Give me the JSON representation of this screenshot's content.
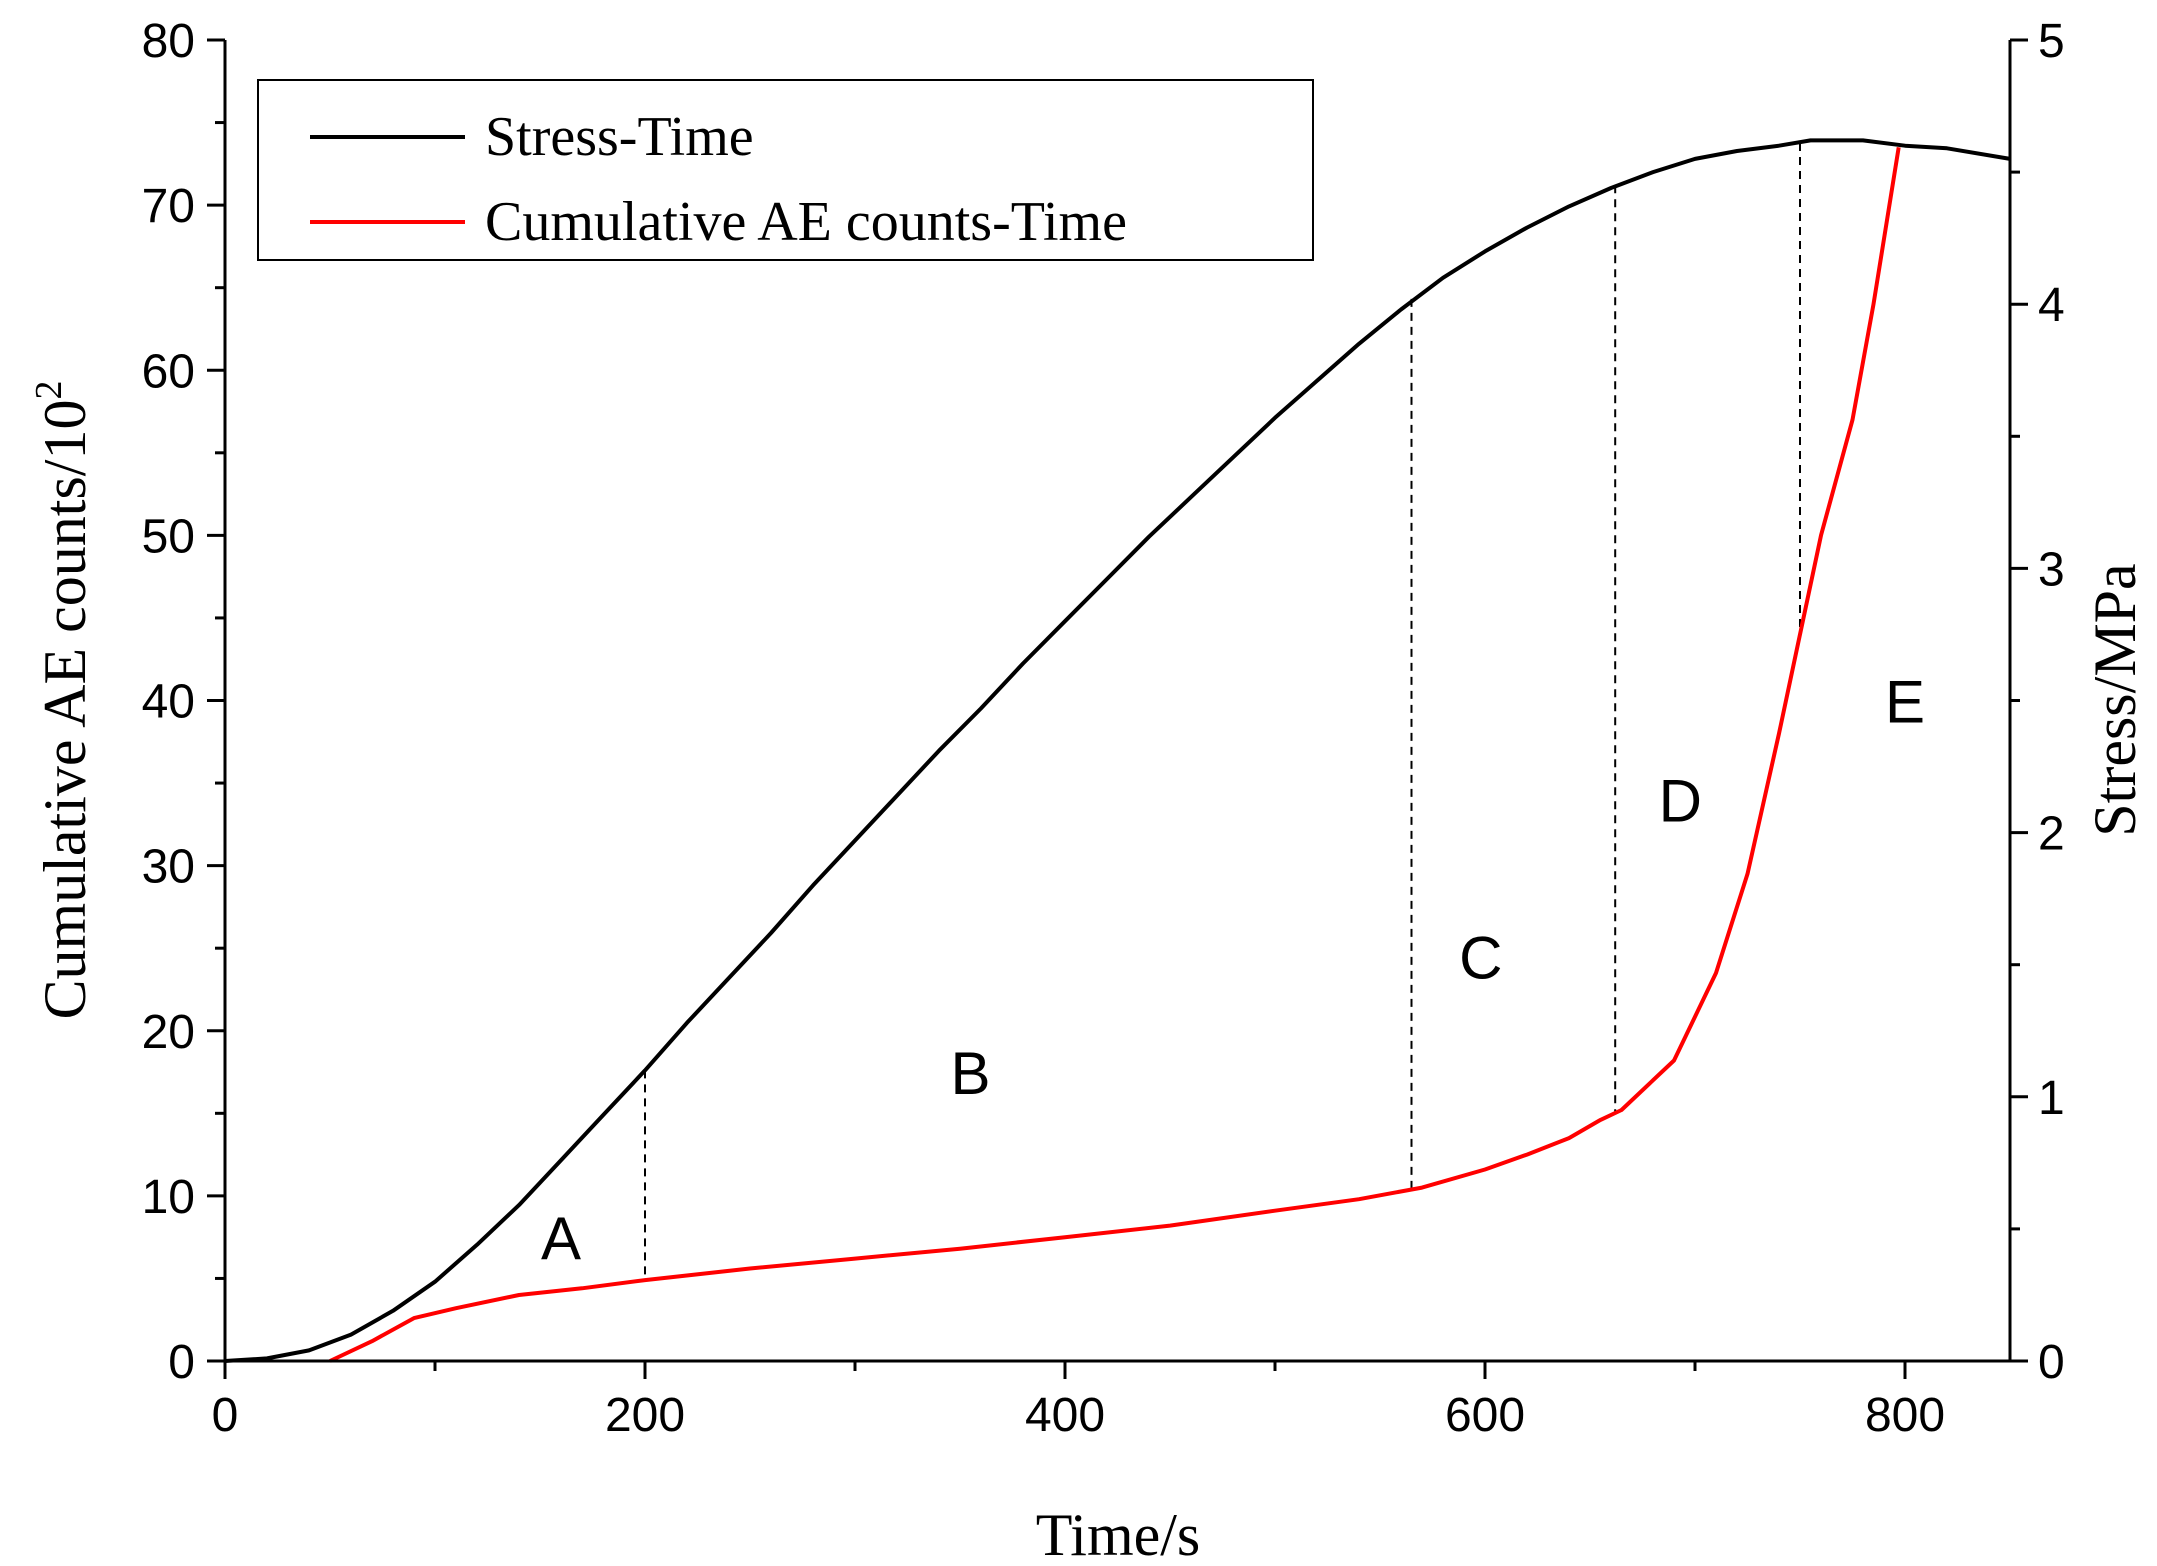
{
  "chart_data": {
    "type": "line",
    "title": "",
    "xlabel": "Time/s",
    "ylabel": "Cumulative AE counts/10",
    "ylabel_superscript": "2",
    "y2label": "Stress/MPa",
    "xlim": [
      0,
      850
    ],
    "ylim": [
      0,
      80
    ],
    "y2lim": [
      0,
      5
    ],
    "x_ticks": [
      0,
      200,
      400,
      600,
      800
    ],
    "x_tick_labels": [
      "0",
      "200",
      "400",
      "600",
      "800"
    ],
    "y_ticks": [
      0,
      10,
      20,
      30,
      40,
      50,
      60,
      70,
      80
    ],
    "y_tick_labels": [
      "0",
      "10",
      "20",
      "30",
      "40",
      "50",
      "60",
      "70",
      "80"
    ],
    "y2_ticks": [
      0,
      1,
      2,
      3,
      4,
      5
    ],
    "y2_tick_labels": [
      "0",
      "1",
      "2",
      "3",
      "4",
      "5"
    ],
    "legend_position": "top-left",
    "series": [
      {
        "name": "Stress-Time",
        "axis": "right",
        "color": "#000000",
        "x": [
          0,
          20,
          40,
          60,
          80,
          100,
          120,
          140,
          160,
          180,
          200,
          220,
          240,
          260,
          280,
          300,
          320,
          340,
          360,
          380,
          400,
          420,
          440,
          460,
          480,
          500,
          520,
          540,
          560,
          580,
          600,
          620,
          640,
          660,
          680,
          700,
          720,
          740,
          755,
          780,
          800,
          820,
          850
        ],
        "values": [
          0.0,
          0.01,
          0.04,
          0.1,
          0.19,
          0.3,
          0.44,
          0.59,
          0.76,
          0.93,
          1.1,
          1.28,
          1.45,
          1.62,
          1.8,
          1.97,
          2.14,
          2.31,
          2.47,
          2.64,
          2.8,
          2.96,
          3.12,
          3.27,
          3.42,
          3.57,
          3.71,
          3.85,
          3.98,
          4.1,
          4.2,
          4.29,
          4.37,
          4.44,
          4.5,
          4.55,
          4.58,
          4.6,
          4.62,
          4.62,
          4.6,
          4.59,
          4.55
        ]
      },
      {
        "name": "Cumulative AE counts-Time",
        "axis": "left",
        "color": "#ff0000",
        "x": [
          50,
          70,
          90,
          110,
          140,
          170,
          200,
          250,
          300,
          350,
          400,
          450,
          500,
          540,
          570,
          600,
          620,
          640,
          655,
          665,
          690,
          710,
          725,
          740,
          750,
          760,
          775,
          785,
          797
        ],
        "values": [
          0,
          1.2,
          2.6,
          3.2,
          4.0,
          4.4,
          4.9,
          5.6,
          6.2,
          6.8,
          7.5,
          8.2,
          9.1,
          9.8,
          10.5,
          11.6,
          12.5,
          13.5,
          14.6,
          15.2,
          18.2,
          23.5,
          29.5,
          38.0,
          44.0,
          50.0,
          57.0,
          64.0,
          73.5
        ]
      }
    ],
    "stage_boundaries": [
      {
        "x": 200,
        "stress": 1.1
      },
      {
        "x": 565,
        "stress": 4.02
      },
      {
        "x": 662,
        "stress": 4.45
      },
      {
        "x": 750,
        "stress": 4.61
      }
    ],
    "annotations": [
      {
        "text": "A",
        "x": 160,
        "y": 7.5
      },
      {
        "text": "B",
        "x": 355,
        "y": 17.5
      },
      {
        "text": "C",
        "x": 598,
        "y": 24.5
      },
      {
        "text": "D",
        "x": 693,
        "y": 34.0
      },
      {
        "text": "E",
        "x": 800,
        "y": 40.0
      }
    ]
  }
}
